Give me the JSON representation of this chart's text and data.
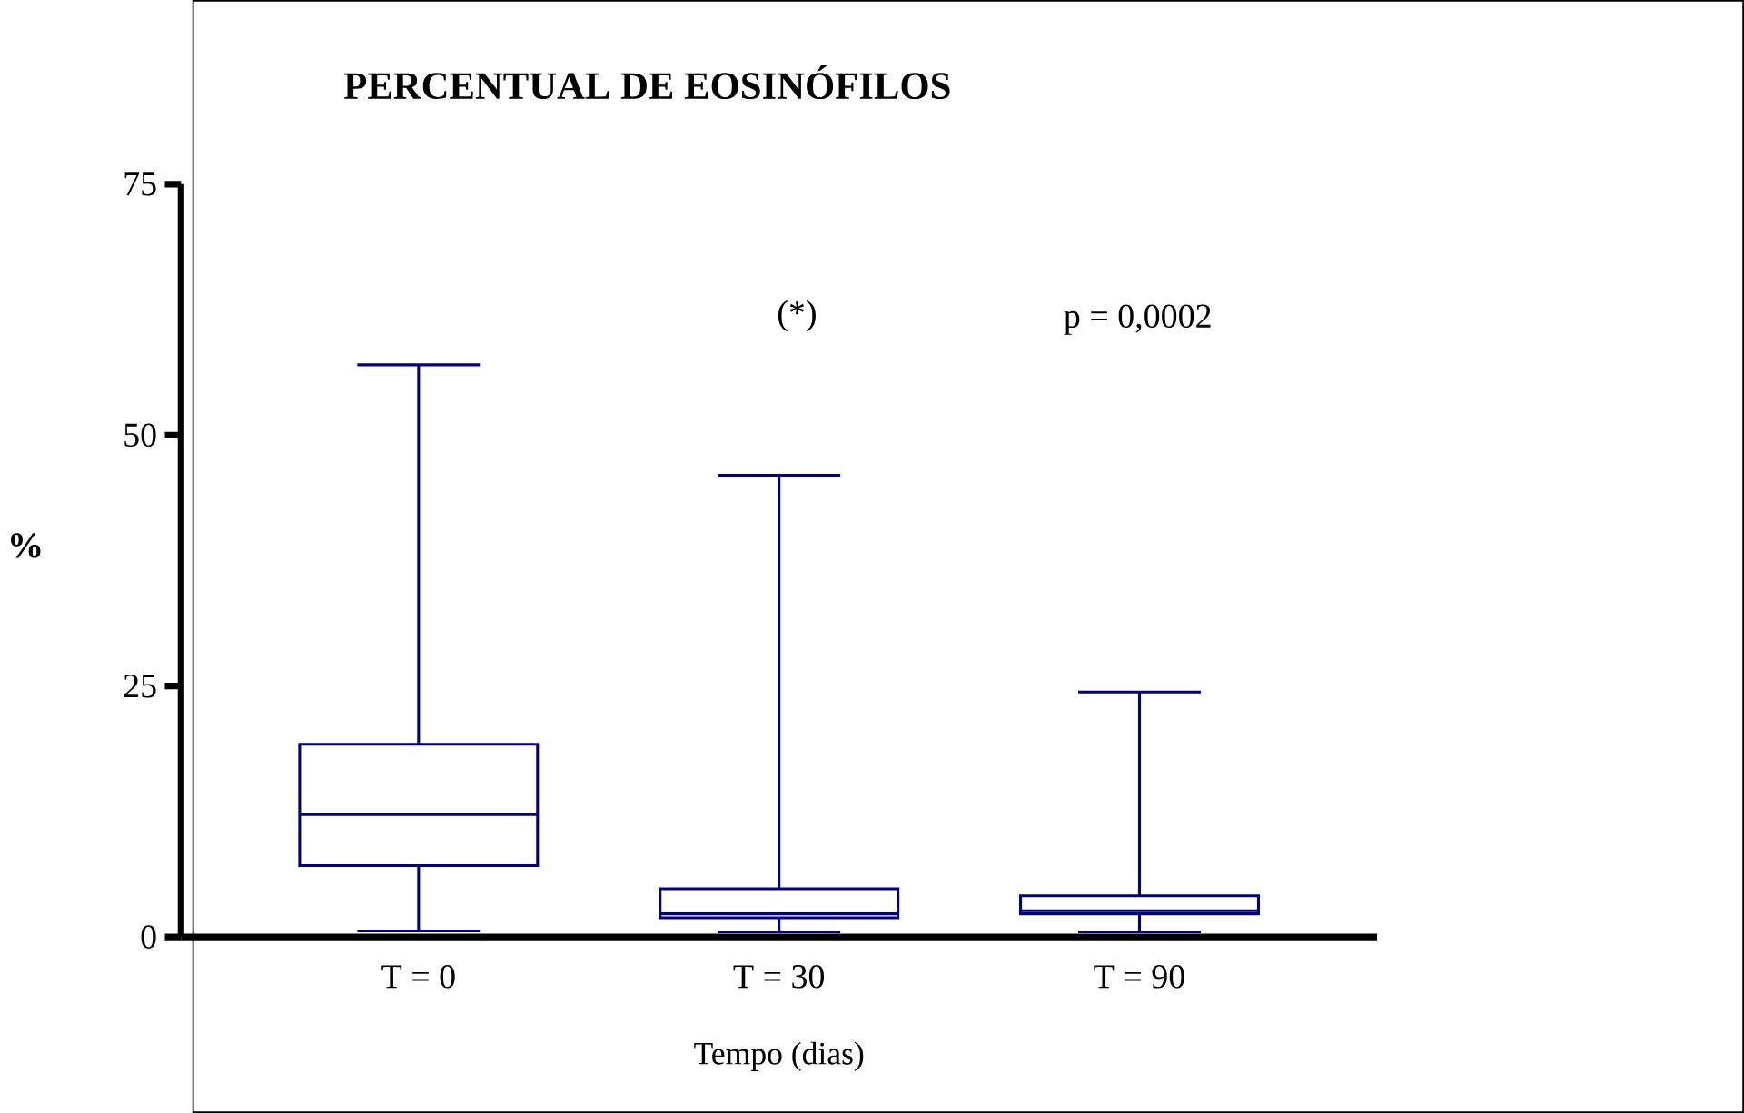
{
  "chart_data": {
    "type": "box",
    "title": "PERCENTUAL  DE  EOSINÓFILOS",
    "xlabel": "Tempo (dias)",
    "ylabel": "%",
    "categories": [
      "T = 0",
      "T = 30",
      "T = 90"
    ],
    "color": "#000080",
    "boxes": [
      {
        "low": 0.6,
        "q1": 7.1,
        "median": 12.2,
        "q3": 19.2,
        "high": 57
      },
      {
        "low": 0.5,
        "q1": 1.9,
        "median": 2.3,
        "q3": 4.8,
        "high": 46
      },
      {
        "low": 0.5,
        "q1": 2.3,
        "median": 2.6,
        "q3": 4.1,
        "high": 24.4
      }
    ],
    "ylim": [
      0,
      75
    ],
    "yticks": [
      0,
      25,
      50,
      75
    ],
    "annotations": [
      "(*)",
      "p = 0,0002"
    ]
  }
}
